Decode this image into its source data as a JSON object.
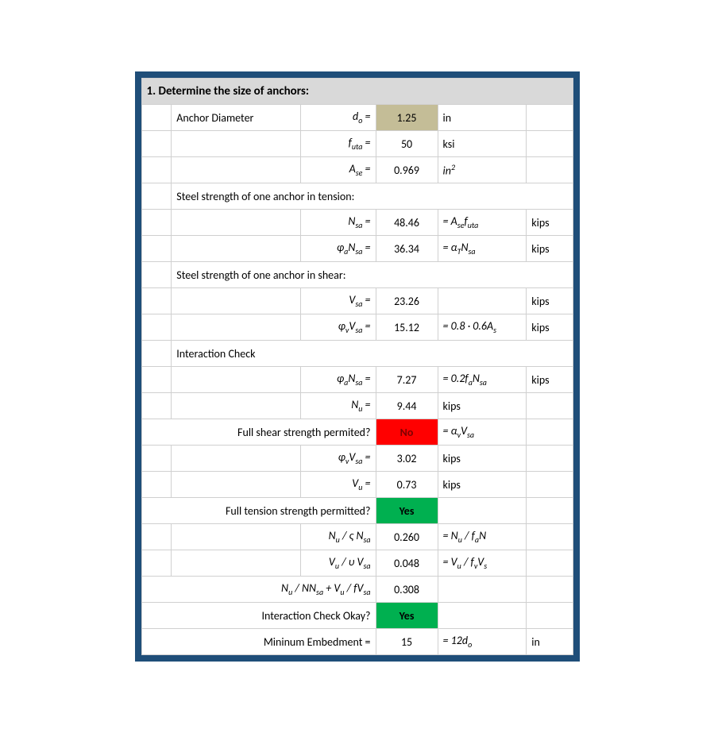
{
  "section_title": "1. Determine the size of anchors:",
  "colors": {
    "frame_border": "#1f4e79",
    "header_bg": "#d9d9d9",
    "input_bg": "#c4bd97",
    "grid": "#d0d0d0",
    "red_bg": "#ff0000",
    "red_text": "#7f0000",
    "green_bg": "#00b050"
  },
  "rows": [
    {
      "label": "Anchor Diameter",
      "sym_html": "d<sub class='sub'>o</sub> =",
      "val": "1.25",
      "unit": "in",
      "val_style": "input"
    },
    {
      "sym_html": "f<sub class='sub'>uta</sub> =",
      "val": "50",
      "unit": "ksi"
    },
    {
      "sym_html": "A<sub class='sub'>se</sub> =",
      "val": "0.969",
      "unit_html": "in<span class='sup'>2</span>"
    },
    {
      "label": "Steel strength of one anchor in tension:"
    },
    {
      "sym_html": "N<sub class='sub'>sa</sub> =",
      "val": "48.46",
      "unit_html": "= A<sub class='sub'>se</sub>f<sub class='sub'>uta</sub>",
      "far": "kips"
    },
    {
      "sym_html": "φ<sub class='sub'>a</sub>N<sub class='sub'>sa</sub> =",
      "val": "36.34",
      "unit_html": "= α<sub class='sub'>T</sub>N<sub class='sub'>sa</sub>",
      "far": "kips"
    },
    {
      "label": "Steel strength of one anchor in shear:"
    },
    {
      "sym_html": "V<sub class='sub'>sa</sub> =",
      "val": "23.26",
      "far": "kips"
    },
    {
      "sym_html": "φ<sub class='sub'>v</sub>V<sub class='sub'>sa</sub> =",
      "val": "15.12",
      "unit_html": "= 0.8 · 0.6A<sub class='sub'>s</sub>",
      "far": "kips"
    },
    {
      "label": "Interaction Check"
    },
    {
      "sym_html": "φ<sub class='sub'>a</sub>N<sub class='sub'>sa</sub> =",
      "val": "7.27",
      "unit_html": "= 0.2f<sub class='sub'>a</sub>N<sub class='sub'>sa</sub>",
      "far": "kips"
    },
    {
      "sym_html": "N<sub class='sub'>u</sub> =",
      "val": "9.44",
      "unit": "kips"
    },
    {
      "merge_label": "Full shear strength permited?",
      "val": "No",
      "val_style": "red",
      "unit_html": "= α<sub class='sub'>v</sub>V<sub class='sub'>sa</sub>"
    },
    {
      "sym_html": "φ<sub class='sub'>v</sub>V<sub class='sub'>sa</sub> =",
      "val": "3.02",
      "unit": "kips"
    },
    {
      "sym_html": "V<sub class='sub'>u</sub> =",
      "val": "0.73",
      "unit": "kips"
    },
    {
      "merge_label": "Full tension strength permitted?",
      "val": "Yes",
      "val_style": "green"
    },
    {
      "sym_html": "N<sub class='sub'>u</sub> / ς N<sub class='sub'>sa</sub>",
      "val": "0.260",
      "unit_html": "= N<sub class='sub'>u</sub> / f<sub class='sub'>a</sub>N"
    },
    {
      "sym_html": "V<sub class='sub'>u</sub> / υ V<sub class='sub'>sa</sub>",
      "val": "0.048",
      "unit_html": "= V<sub class='sub'>u</sub> / f<sub class='sub'>v</sub>V<sub class='sub'>s</sub>"
    },
    {
      "merge_sym_html": "N<sub class='sub'>u</sub> / NN<sub class='sub'>sa</sub> + V<sub class='sub'>u</sub> / fV<sub class='sub'>sa</sub>",
      "val": "0.308"
    },
    {
      "merge_label": "Interaction Check Okay?",
      "val": "Yes",
      "val_style": "green"
    },
    {
      "merge_label": "Mininum Embedment =",
      "val": "15",
      "unit_html": "= 12d<sub class='sub'>o</sub>",
      "far": "in"
    }
  ]
}
